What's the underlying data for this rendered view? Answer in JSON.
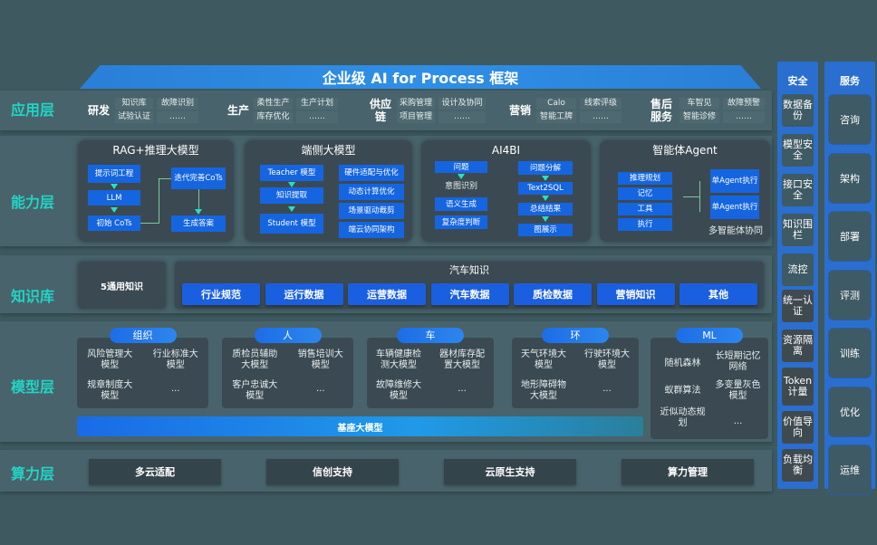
{
  "title": "企业级 AI for Process 框架",
  "layers": {
    "app": "应用层",
    "ability": "能力层",
    "knowledge": "知识库",
    "model": "模型层",
    "compute": "算力层"
  },
  "app": [
    {
      "name": "研发",
      "items": [
        "知识库",
        "故障识别",
        "试验认证",
        "……"
      ]
    },
    {
      "name": "生产",
      "items": [
        "柔性生产",
        "生产计划",
        "库存优化",
        "……"
      ]
    },
    {
      "name": "供应链",
      "items": [
        "采购管理",
        "设计及协同",
        "项目管理",
        "……"
      ]
    },
    {
      "name": "营销",
      "items": [
        "Calo",
        "线索评级",
        "智能工牌",
        "……"
      ]
    },
    {
      "name": "售后服务",
      "items": [
        "车智见",
        "故障预警",
        "智能诊修",
        "……"
      ]
    }
  ],
  "ability": {
    "rag": {
      "title": "RAG+推理大模型",
      "items": [
        "提示词工程",
        "LLM",
        "初始 CoTs",
        "迭代完善CoTs",
        "生成答案"
      ]
    },
    "edge": {
      "title": "端侧大模型",
      "left": [
        "Teacher 模型",
        "知识提取",
        "Student 模型"
      ],
      "right": [
        "硬件适配与优化",
        "动态计算优化",
        "场景驱动裁剪",
        "端云协同架构"
      ]
    },
    "ai4bi": {
      "title": "AI4BI",
      "left": [
        "问题",
        "意图识别",
        "语义生成",
        "复杂度判断"
      ],
      "right": [
        "问题分解",
        "Text2SQL",
        "总结结果",
        "图展示"
      ]
    },
    "agent": {
      "title": "智能体Agent",
      "left": [
        "推理规划",
        "记忆",
        "工具",
        "执行"
      ],
      "right": [
        "单Agent执行",
        "单Agent执行"
      ],
      "footer": "多智能体协同"
    }
  },
  "knowledge": {
    "general": "5通用知识",
    "auto_title": "汽车知识",
    "items": [
      "行业规范",
      "运行数据",
      "运营数据",
      "汽车数据",
      "质检数据",
      "营销知识",
      "其他"
    ]
  },
  "model": {
    "groups": [
      {
        "name": "组织",
        "items": [
          "风险管理大模型",
          "行业标准大模型",
          "规章制度大模型",
          "..."
        ]
      },
      {
        "name": "人",
        "items": [
          "质检员辅助大模型",
          "销售培训大模型",
          "客户忠诚大模型",
          "..."
        ]
      },
      {
        "name": "车",
        "items": [
          "车辆健康检测大模型",
          "器材库存配置大模型",
          "故障维修大模型",
          "..."
        ]
      },
      {
        "name": "环",
        "items": [
          "天气环境大模型",
          "行驶环境大模型",
          "地形障碍物大模型",
          "..."
        ]
      },
      {
        "name": "ML",
        "items": [
          "随机森林",
          "长短期记忆网络",
          "蚁群算法",
          "多变量灰色模型",
          "近似动态规划",
          "..."
        ]
      }
    ],
    "base": "基座大模型"
  },
  "compute": [
    "多云适配",
    "信创支持",
    "云原生支持",
    "算力管理"
  ],
  "security": {
    "title": "安全",
    "items": [
      "数据备份",
      "模型安全",
      "接口安全",
      "知识围栏",
      "流控",
      "统一认证",
      "资源隔离",
      "Token计量",
      "价值导向",
      "负载均衡"
    ]
  },
  "service": {
    "title": "服务",
    "items": [
      "咨询",
      "架构",
      "部署",
      "评测",
      "训练",
      "优化",
      "运维"
    ]
  },
  "colors": {
    "accent": "#22d4c4",
    "blue": "#1565e0",
    "background": "#3e5960"
  }
}
